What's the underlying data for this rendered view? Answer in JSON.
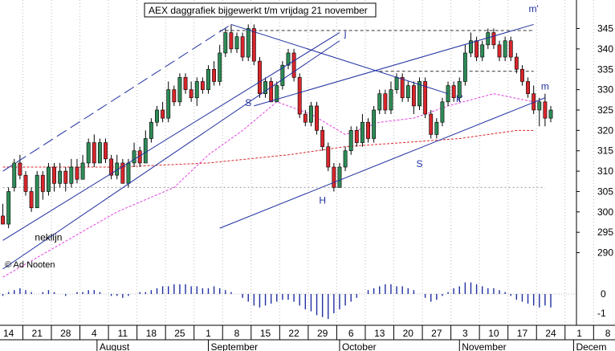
{
  "chart_data": {
    "type": "candlestick",
    "title": "AEX daggrafiek bijgewerkt t/m vrijdag 21 november",
    "credit": "© Ad Nooten",
    "price_axis": {
      "ylim": [
        284,
        352
      ],
      "ticks": [
        290,
        295,
        300,
        305,
        310,
        315,
        320,
        325,
        330,
        335,
        340,
        345
      ]
    },
    "oscillator_axis": {
      "ticks": [
        "0",
        "-1"
      ]
    },
    "x_axis": {
      "day_ticks": [
        "14",
        "21",
        "28",
        "4",
        "11",
        "18",
        "25",
        "1",
        "8",
        "15",
        "22",
        "29",
        "6",
        "13",
        "20",
        "27",
        "3",
        "10",
        "17",
        "24",
        "1",
        "8"
      ],
      "month_labels": [
        "August",
        "September",
        "October",
        "November",
        "Decem"
      ]
    },
    "colors": {
      "up": "#2e8b57",
      "down": "#d9262c",
      "trend_line": "#1f2fa0",
      "ma_short": "#e040e0",
      "ma_long": "#d9262c",
      "support": "#888888"
    },
    "candles": [
      [
        299,
        297,
        302,
        297
      ],
      [
        297,
        305,
        306,
        296
      ],
      [
        306,
        312,
        313,
        305
      ],
      [
        312,
        309,
        314,
        308
      ],
      [
        309,
        305,
        310,
        304
      ],
      [
        305,
        301,
        306,
        300
      ],
      [
        301,
        309,
        310,
        301
      ],
      [
        309,
        305,
        310,
        303
      ],
      [
        305,
        311,
        312,
        304
      ],
      [
        311,
        307,
        312,
        305
      ],
      [
        307,
        310,
        312,
        306
      ],
      [
        310,
        307,
        311,
        305
      ],
      [
        307,
        311,
        313,
        306
      ],
      [
        311,
        308,
        313,
        307
      ],
      [
        308,
        312,
        314,
        308
      ],
      [
        312,
        317,
        318,
        311
      ],
      [
        317,
        312,
        319,
        311
      ],
      [
        312,
        317,
        318,
        312
      ],
      [
        317,
        313,
        318,
        312
      ],
      [
        313,
        309,
        314,
        308
      ],
      [
        309,
        312,
        314,
        308
      ],
      [
        312,
        307,
        313,
        307
      ],
      [
        307,
        312,
        313,
        306
      ],
      [
        312,
        315,
        317,
        311
      ],
      [
        315,
        312,
        316,
        311
      ],
      [
        312,
        318,
        320,
        312
      ],
      [
        318,
        322,
        323,
        317
      ],
      [
        322,
        325,
        326,
        321
      ],
      [
        325,
        323,
        327,
        322
      ],
      [
        323,
        330,
        332,
        322
      ],
      [
        330,
        327,
        331,
        326
      ],
      [
        327,
        333,
        334,
        326
      ],
      [
        333,
        330,
        334,
        329
      ],
      [
        330,
        328,
        332,
        327
      ],
      [
        328,
        332,
        333,
        326
      ],
      [
        332,
        330,
        333,
        329
      ],
      [
        330,
        335,
        336,
        329
      ],
      [
        335,
        332,
        337,
        331
      ],
      [
        332,
        339,
        341,
        331
      ],
      [
        339,
        344,
        345,
        338
      ],
      [
        344,
        340,
        346,
        339
      ],
      [
        340,
        343,
        344,
        339
      ],
      [
        343,
        338,
        344,
        337
      ],
      [
        338,
        345,
        346,
        337
      ],
      [
        345,
        337,
        346,
        336
      ],
      [
        337,
        329,
        338,
        328
      ],
      [
        329,
        332,
        333,
        328
      ],
      [
        332,
        327,
        333,
        327
      ],
      [
        327,
        331,
        332,
        327
      ],
      [
        331,
        336,
        337,
        330
      ],
      [
        336,
        339,
        340,
        335
      ],
      [
        339,
        333,
        340,
        332
      ],
      [
        333,
        324,
        334,
        323
      ],
      [
        324,
        322,
        325,
        321
      ],
      [
        322,
        326,
        327,
        321
      ],
      [
        326,
        320,
        327,
        319
      ],
      [
        320,
        316,
        321,
        315
      ],
      [
        316,
        311,
        317,
        310
      ],
      [
        311,
        306,
        312,
        305
      ],
      [
        306,
        311,
        312,
        306
      ],
      [
        311,
        315,
        316,
        310
      ],
      [
        315,
        320,
        321,
        314
      ],
      [
        320,
        317,
        321,
        316
      ],
      [
        317,
        322,
        324,
        316
      ],
      [
        322,
        318,
        323,
        317
      ],
      [
        318,
        325,
        326,
        317
      ],
      [
        325,
        329,
        330,
        324
      ],
      [
        329,
        325,
        330,
        324
      ],
      [
        325,
        330,
        332,
        324
      ],
      [
        330,
        333,
        334,
        329
      ],
      [
        333,
        328,
        334,
        327
      ],
      [
        328,
        331,
        332,
        327
      ],
      [
        331,
        326,
        332,
        324
      ],
      [
        326,
        332,
        333,
        325
      ],
      [
        332,
        324,
        333,
        323
      ],
      [
        324,
        319,
        325,
        318
      ],
      [
        319,
        322,
        323,
        318
      ],
      [
        322,
        327,
        328,
        321
      ],
      [
        327,
        331,
        332,
        326
      ],
      [
        331,
        328,
        332,
        327
      ],
      [
        328,
        332,
        333,
        327
      ],
      [
        332,
        339,
        341,
        331
      ],
      [
        339,
        342,
        344,
        338
      ],
      [
        342,
        338,
        343,
        337
      ],
      [
        338,
        341,
        342,
        337
      ],
      [
        341,
        344,
        345,
        340
      ],
      [
        344,
        341,
        345,
        340
      ],
      [
        341,
        338,
        342,
        337
      ],
      [
        338,
        342,
        343,
        337
      ],
      [
        342,
        338,
        343,
        337
      ],
      [
        338,
        335,
        339,
        334
      ],
      [
        335,
        332,
        336,
        331
      ],
      [
        332,
        329,
        333,
        328
      ],
      [
        329,
        325,
        331,
        324
      ],
      [
        325,
        327,
        328,
        321
      ],
      [
        327,
        323,
        329,
        321
      ],
      [
        323,
        325,
        326,
        322
      ]
    ],
    "oscillator": [
      -0.1,
      0.1,
      0.2,
      0.3,
      0.2,
      0.1,
      0.0,
      0.1,
      0.2,
      0.1,
      0.0,
      -0.1,
      0.0,
      0.1,
      0.1,
      0.2,
      0.2,
      0.1,
      0.0,
      -0.1,
      -0.1,
      -0.2,
      -0.1,
      0.0,
      0.1,
      0.1,
      0.2,
      0.3,
      0.4,
      0.4,
      0.5,
      0.5,
      0.5,
      0.4,
      0.4,
      0.3,
      0.3,
      0.4,
      0.3,
      0.2,
      0.1,
      0.0,
      -0.2,
      -0.4,
      -0.6,
      -0.7,
      -0.6,
      -0.5,
      -0.4,
      -0.3,
      -0.3,
      -0.4,
      -0.6,
      -0.8,
      -0.9,
      -1.1,
      -1.2,
      -1.3,
      -1.0,
      -0.8,
      -0.6,
      -0.4,
      -0.2,
      0.0,
      0.2,
      0.3,
      0.4,
      0.5,
      0.5,
      0.4,
      0.4,
      0.3,
      0.2,
      0.0,
      -0.2,
      -0.4,
      -0.3,
      -0.1,
      0.1,
      0.3,
      0.4,
      0.6,
      0.6,
      0.5,
      0.4,
      0.3,
      0.3,
      0.2,
      0.1,
      -0.1,
      -0.3,
      -0.4,
      -0.5,
      -0.6,
      -0.7,
      -0.6,
      -0.7
    ],
    "ma_short": [
      [
        0,
        284
      ],
      [
        10,
        292
      ],
      [
        20,
        300
      ],
      [
        30,
        306
      ],
      [
        36,
        314
      ],
      [
        42,
        320
      ],
      [
        48,
        327
      ],
      [
        54,
        324
      ],
      [
        60,
        319
      ],
      [
        66,
        322
      ],
      [
        72,
        323
      ],
      [
        78,
        326
      ],
      [
        86,
        329
      ],
      [
        93,
        327
      ]
    ],
    "ma_long": [
      [
        0,
        311
      ],
      [
        20,
        311
      ],
      [
        36,
        312
      ],
      [
        50,
        314
      ],
      [
        60,
        316
      ],
      [
        70,
        317
      ],
      [
        80,
        318
      ],
      [
        90,
        320
      ],
      [
        93,
        320
      ]
    ],
    "horizontal_levels": [
      {
        "y": 344.5,
        "style": "dashed",
        "from": 38,
        "to": 93
      },
      {
        "y": 334.5,
        "style": "dashed",
        "from": 66,
        "to": 93
      },
      {
        "y": 306,
        "style": "dotted",
        "from": 0,
        "to": 95
      }
    ],
    "trend_lines": [
      {
        "p1": [
          0,
          293
        ],
        "p2": [
          59,
          344
        ]
      },
      {
        "p1": [
          0,
          310
        ],
        "p2": [
          40,
          346
        ],
        "dashed": true
      },
      {
        "p1": [
          40,
          346
        ],
        "p2": [
          78,
          329
        ]
      },
      {
        "p1": [
          44,
          326
        ],
        "p2": [
          93,
          346
        ]
      },
      {
        "p1": [
          38,
          296
        ],
        "p2": [
          95,
          328
        ]
      },
      {
        "p1": [
          0,
          286
        ],
        "p2": [
          59,
          342
        ]
      }
    ],
    "annotations": [
      {
        "text": "m'",
        "x": 93,
        "y": 349
      },
      {
        "text": "j",
        "x": 60,
        "y": 343
      },
      {
        "text": "k'",
        "x": 80,
        "y": 327
      },
      {
        "text": "m",
        "x": 95,
        "y": 330
      },
      {
        "text": "S",
        "x": 43,
        "y": 326
      },
      {
        "text": "S",
        "x": 73,
        "y": 311
      },
      {
        "text": "H",
        "x": 56,
        "y": 302
      },
      {
        "text": "neklijn",
        "x": 8,
        "y": 293
      }
    ]
  }
}
